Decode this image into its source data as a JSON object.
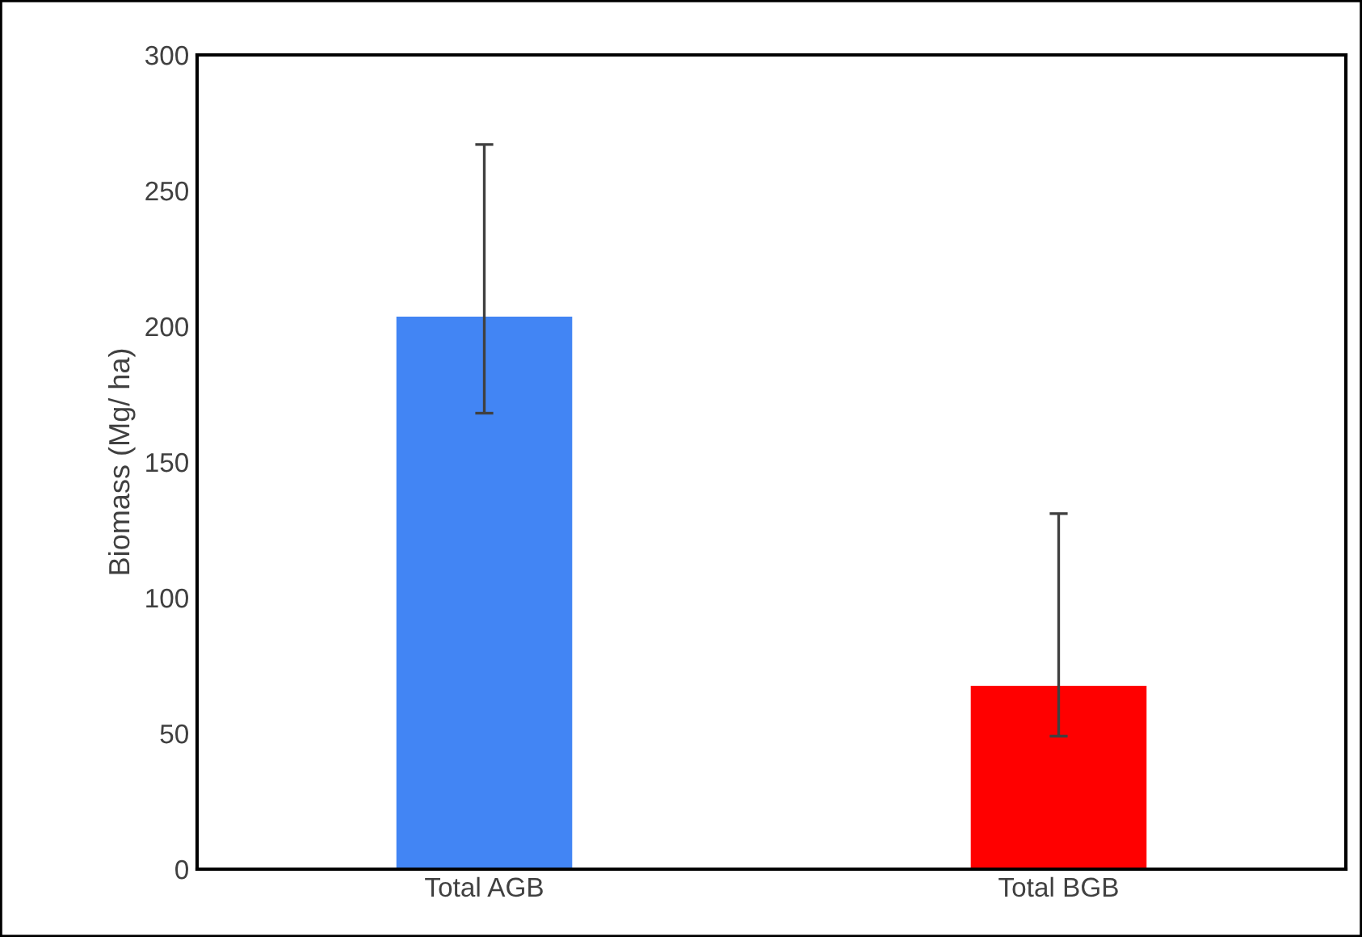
{
  "chart_data": {
    "type": "bar",
    "ylabel": "Biomass (Mg/ ha)",
    "categories": [
      "Total AGB",
      "Total BGB"
    ],
    "values": [
      204,
      68
    ],
    "colors": [
      "#4285f4",
      "#ff0000"
    ],
    "errors": [
      [
        168,
        267
      ],
      [
        49,
        131
      ]
    ],
    "ylim": [
      0,
      300
    ],
    "yticks": [
      0,
      50,
      100,
      150,
      200,
      250,
      300
    ],
    "grid": false,
    "legend": false
  }
}
